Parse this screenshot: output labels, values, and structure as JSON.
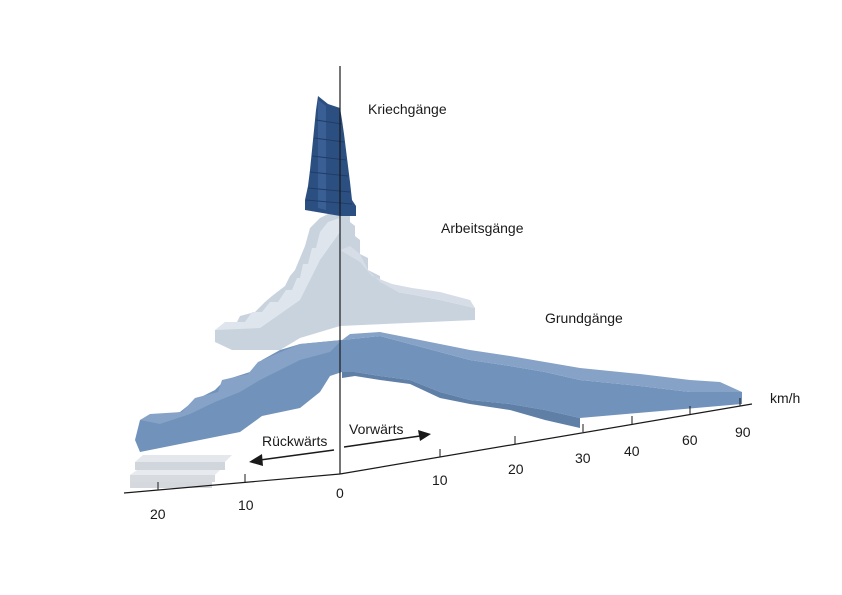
{
  "chart_data": {
    "type": "bar",
    "unit": "km/h",
    "direction_labels": {
      "forward": "Vorwärts",
      "reverse": "Rückwärts"
    },
    "forward_ticks": [
      "0",
      "10",
      "20",
      "30",
      "40",
      "60",
      "90"
    ],
    "reverse_ticks": [
      "10",
      "20"
    ],
    "colors": {
      "kriech": "#2c4f82",
      "arbeit": "#c9d3de",
      "grund": "#7092bb",
      "reverse_light": "#d1d6dc",
      "axis": "#1a1a1a"
    },
    "series": [
      {
        "name": "Kriechgänge",
        "color_key": "kriech",
        "forward_steps": 8
      },
      {
        "name": "Arbeitsgänge",
        "color_key": "arbeit",
        "forward_steps": 8,
        "reverse_steps": 8
      },
      {
        "name": "Grundgänge",
        "color_key": "grund",
        "forward_steps": 8,
        "reverse_steps": 7
      }
    ]
  }
}
